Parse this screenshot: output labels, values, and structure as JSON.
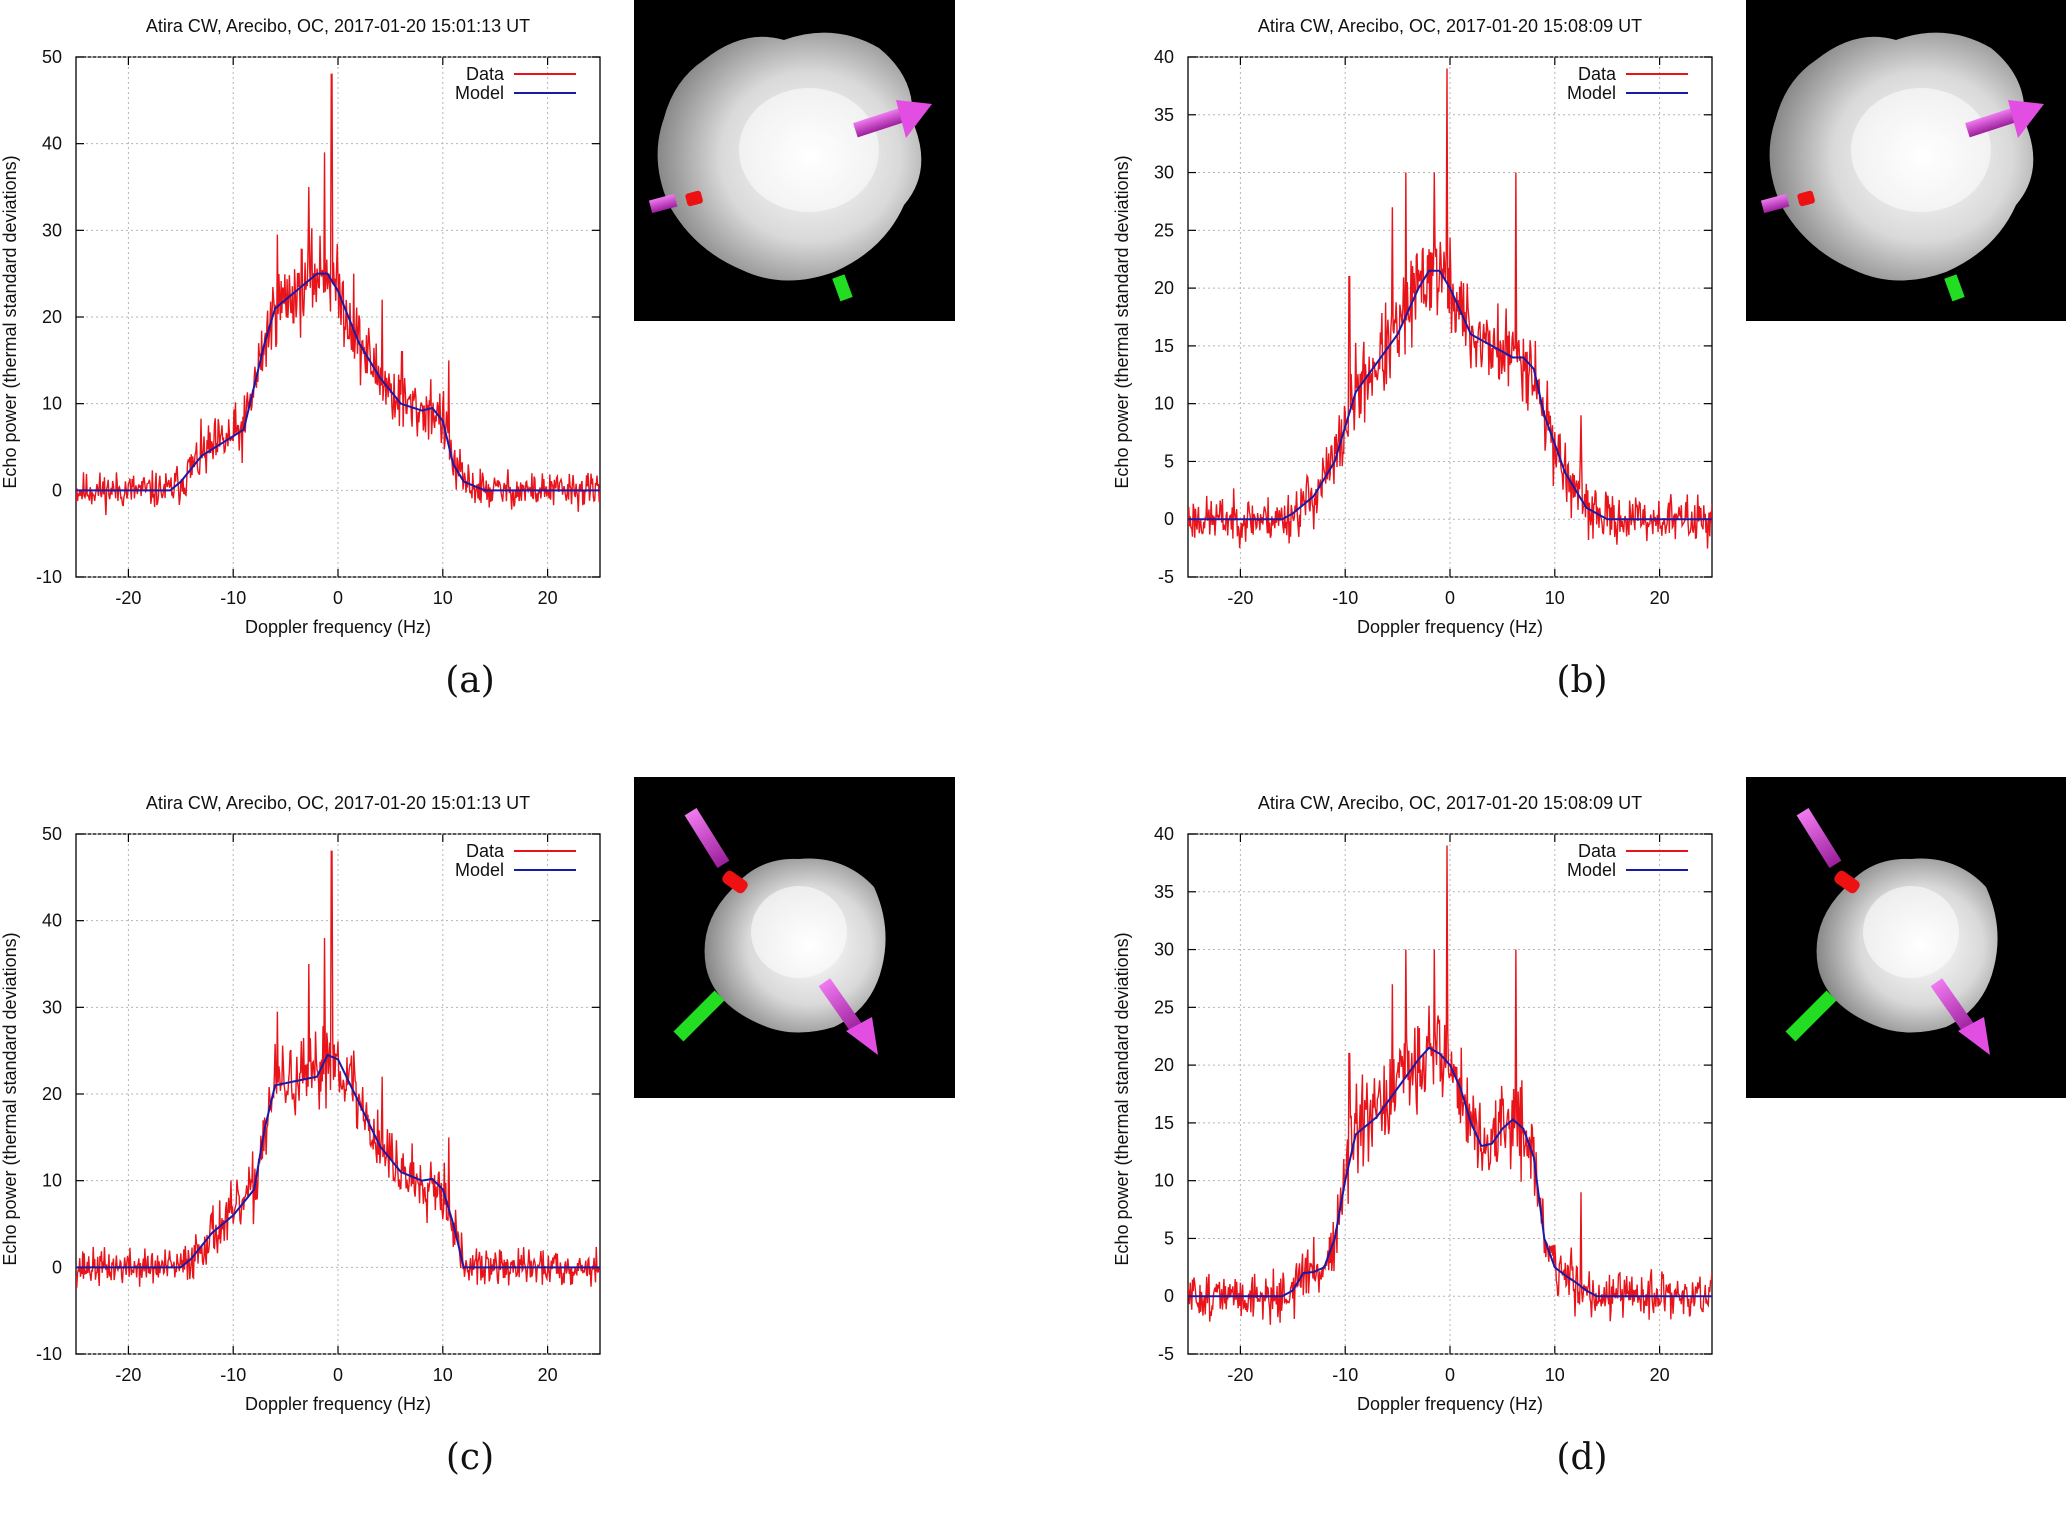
{
  "colors": {
    "data": "#e8141a",
    "model": "#1a1aa8",
    "grid": "#b5b5b5",
    "axis": "#000000",
    "background": "#ffffff",
    "render_bg": "#000000",
    "arrow_magenta": "#d63ad6",
    "arrow_green": "#22dd22",
    "marker_red": "#ee1111"
  },
  "panels": [
    {
      "id": "a",
      "caption": "(a)",
      "render": {
        "name": "shape-model-view-a",
        "orientation": "oblique-equatorial"
      },
      "chart_data": {
        "type": "line",
        "title": "Atira CW, Arecibo, OC, 2017-01-20 15:01:13 UT",
        "xlabel": "Doppler frequency (Hz)",
        "ylabel": "Echo power (thermal standard deviations)",
        "xlim": [
          -25,
          25
        ],
        "ylim": [
          -10,
          50
        ],
        "xticks": [
          -20,
          -10,
          0,
          10,
          20
        ],
        "yticks": [
          -10,
          0,
          10,
          20,
          30,
          40,
          50
        ],
        "grid": true,
        "legend": {
          "position": "top-right",
          "entries": [
            "Data",
            "Model"
          ]
        },
        "series": [
          {
            "name": "Model",
            "x": [
              -25,
              -16,
              -15,
              -13,
              -11,
              -9,
              -8,
              -7,
              -6,
              -4,
              -2,
              -1,
              0,
              2,
              4,
              6,
              8,
              9,
              10,
              11,
              12,
              14,
              25
            ],
            "y": [
              0,
              0,
              1,
              4,
              5.5,
              7,
              12,
              17,
              21,
              23,
              25,
              25,
              23,
              17,
              13,
              10,
              9.2,
              9.5,
              8,
              3,
              1,
              0,
              0
            ]
          },
          {
            "name": "Data",
            "x": [
              -25,
              -16,
              -15,
              -13,
              -11,
              -9,
              -8,
              -7,
              -6,
              -4,
              -2,
              -1,
              0,
              2,
              4,
              6,
              8,
              9,
              10,
              11,
              12,
              14,
              25
            ],
            "y": [
              0,
              0,
              1,
              4,
              5.5,
              7,
              12,
              17,
              21,
              23,
              25,
              25,
              23,
              17,
              13,
              10,
              9.2,
              9.5,
              8,
              3,
              1,
              0,
              0
            ],
            "noise": 2.6,
            "seed": 11,
            "spikes": [
              {
                "x": -0.6,
                "y": 48
              },
              {
                "x": -1.3,
                "y": 39
              },
              {
                "x": -5.8,
                "y": 29.5
              },
              {
                "x": -2.8,
                "y": 35
              },
              {
                "x": 1.5,
                "y": 25
              },
              {
                "x": 4.2,
                "y": 22
              },
              {
                "x": 10.6,
                "y": 15
              },
              {
                "x": 6.1,
                "y": 16
              }
            ]
          }
        ]
      }
    },
    {
      "id": "b",
      "caption": "(b)",
      "render": {
        "name": "shape-model-view-b",
        "orientation": "oblique-equatorial"
      },
      "chart_data": {
        "type": "line",
        "title": "Atira CW, Arecibo, OC, 2017-01-20 15:08:09 UT",
        "xlabel": "Doppler frequency (Hz)",
        "ylabel": "Echo power (thermal standard deviations)",
        "xlim": [
          -25,
          25
        ],
        "ylim": [
          -5,
          40
        ],
        "xticks": [
          -20,
          -10,
          0,
          10,
          20
        ],
        "yticks": [
          -5,
          0,
          5,
          10,
          15,
          20,
          25,
          30,
          35,
          40
        ],
        "grid": true,
        "legend": {
          "position": "top-right",
          "entries": [
            "Data",
            "Model"
          ]
        },
        "series": [
          {
            "name": "Model",
            "x": [
              -25,
              -16,
              -15,
              -13,
              -11,
              -10,
              -9,
              -7,
              -5,
              -3,
              -2,
              -1,
              0,
              2,
              4,
              6,
              7,
              8,
              9,
              11,
              13,
              15,
              25
            ],
            "y": [
              0,
              0,
              0.5,
              2,
              5,
              8,
              11,
              13.5,
              16,
              20,
              21.5,
              21.5,
              20,
              16,
              15,
              14,
              14,
              13,
              9,
              4,
              1,
              0,
              0
            ]
          },
          {
            "name": "Data",
            "x": [
              -25,
              -16,
              -15,
              -13,
              -11,
              -10,
              -9,
              -7,
              -5,
              -3,
              -2,
              -1,
              0,
              2,
              4,
              6,
              7,
              8,
              9,
              11,
              13,
              15,
              25
            ],
            "y": [
              0,
              0,
              0.5,
              2,
              5,
              8,
              11,
              13.5,
              16,
              20,
              21.5,
              21.5,
              20,
              16,
              15,
              14,
              14,
              13,
              9,
              4,
              1,
              0,
              0
            ],
            "noise": 2.4,
            "seed": 23,
            "spikes": [
              {
                "x": -0.3,
                "y": 39
              },
              {
                "x": 6.3,
                "y": 30
              },
              {
                "x": -1.5,
                "y": 30
              },
              {
                "x": -4.2,
                "y": 30
              },
              {
                "x": -5.5,
                "y": 27
              },
              {
                "x": -9.6,
                "y": 21
              },
              {
                "x": 12.5,
                "y": 9
              }
            ]
          }
        ]
      }
    },
    {
      "id": "c",
      "caption": "(c)",
      "render": {
        "name": "shape-model-view-c",
        "orientation": "pole-on"
      },
      "chart_data": {
        "type": "line",
        "title": "Atira CW, Arecibo, OC, 2017-01-20 15:01:13 UT",
        "xlabel": "Doppler frequency (Hz)",
        "ylabel": "Echo power (thermal standard deviations)",
        "xlim": [
          -25,
          25
        ],
        "ylim": [
          -10,
          50
        ],
        "xticks": [
          -20,
          -10,
          0,
          10,
          20
        ],
        "yticks": [
          -10,
          0,
          10,
          20,
          30,
          40,
          50
        ],
        "grid": true,
        "legend": {
          "position": "top-right",
          "entries": [
            "Data",
            "Model"
          ]
        },
        "series": [
          {
            "name": "Model",
            "x": [
              -25,
              -15,
              -14,
              -12,
              -10,
              -8,
              -7,
              -6,
              -4,
              -2,
              -1,
              0,
              2,
              4,
              6,
              8,
              9,
              10,
              11,
              12,
              25
            ],
            "y": [
              0,
              0,
              1,
              4,
              6,
              9,
              16,
              21,
              21.5,
              22,
              24.5,
              24,
              19,
              14,
              11,
              10,
              10.2,
              9,
              5,
              0,
              0
            ]
          },
          {
            "name": "Data",
            "x": [
              -25,
              -15,
              -14,
              -12,
              -10,
              -8,
              -7,
              -6,
              -4,
              -2,
              -1,
              0,
              2,
              4,
              6,
              8,
              9,
              10,
              11,
              12,
              25
            ],
            "y": [
              0,
              0,
              1,
              4,
              6,
              9,
              16,
              21,
              21.5,
              22,
              24.5,
              24,
              19,
              14,
              11,
              10,
              10.2,
              9,
              5,
              0,
              0
            ],
            "noise": 2.6,
            "seed": 37,
            "spikes": [
              {
                "x": -0.6,
                "y": 48
              },
              {
                "x": -1.3,
                "y": 38
              },
              {
                "x": -5.8,
                "y": 29.5
              },
              {
                "x": -2.8,
                "y": 35
              },
              {
                "x": 1.5,
                "y": 25
              },
              {
                "x": 4.2,
                "y": 22
              },
              {
                "x": 10.6,
                "y": 15
              }
            ]
          }
        ]
      }
    },
    {
      "id": "d",
      "caption": "(d)",
      "render": {
        "name": "shape-model-view-d",
        "orientation": "pole-on"
      },
      "chart_data": {
        "type": "line",
        "title": "Atira CW, Arecibo, OC, 2017-01-20 15:08:09 UT",
        "xlabel": "Doppler frequency (Hz)",
        "ylabel": "Echo power (thermal standard deviations)",
        "xlim": [
          -25,
          25
        ],
        "ylim": [
          -5,
          40
        ],
        "xticks": [
          -20,
          -10,
          0,
          10,
          20
        ],
        "yticks": [
          -5,
          0,
          5,
          10,
          15,
          20,
          25,
          30,
          35,
          40
        ],
        "grid": true,
        "legend": {
          "position": "top-right",
          "entries": [
            "Data",
            "Model"
          ]
        },
        "series": [
          {
            "name": "Model",
            "x": [
              -25,
              -16,
              -15,
              -14,
              -13,
              -12,
              -11,
              -10,
              -9,
              -7,
              -5,
              -3,
              -2,
              -1,
              0,
              1,
              2,
              3,
              4,
              5,
              6,
              7,
              8,
              9,
              10,
              11,
              12,
              13,
              14,
              15,
              25
            ],
            "y": [
              0,
              0,
              0.5,
              2,
              2.1,
              2.5,
              5,
              10,
              14,
              15.5,
              18,
              20.5,
              21.5,
              21,
              20,
              18,
              15,
              13,
              13.2,
              14.5,
              15.3,
              14.5,
              12,
              5,
              2.5,
              1.8,
              1.2,
              0.5,
              0,
              0,
              0
            ]
          },
          {
            "name": "Data",
            "x": [
              -25,
              -16,
              -15,
              -14,
              -13,
              -12,
              -11,
              -10,
              -9,
              -7,
              -5,
              -3,
              -2,
              -1,
              0,
              1,
              2,
              3,
              4,
              5,
              6,
              7,
              8,
              9,
              10,
              11,
              12,
              13,
              14,
              15,
              25
            ],
            "y": [
              0,
              0,
              0.5,
              2,
              2.1,
              2.5,
              5,
              10,
              14,
              15.5,
              18,
              20.5,
              21.5,
              21,
              20,
              18,
              15,
              13,
              13.2,
              14.5,
              15.3,
              14.5,
              12,
              5,
              2.5,
              1.8,
              1.2,
              0.5,
              0,
              0,
              0
            ],
            "noise": 2.4,
            "seed": 51,
            "spikes": [
              {
                "x": -0.3,
                "y": 39
              },
              {
                "x": 6.3,
                "y": 30
              },
              {
                "x": -1.5,
                "y": 30
              },
              {
                "x": -4.2,
                "y": 30
              },
              {
                "x": -5.5,
                "y": 27
              },
              {
                "x": -9.6,
                "y": 21
              },
              {
                "x": 12.5,
                "y": 9
              }
            ]
          }
        ]
      }
    }
  ]
}
